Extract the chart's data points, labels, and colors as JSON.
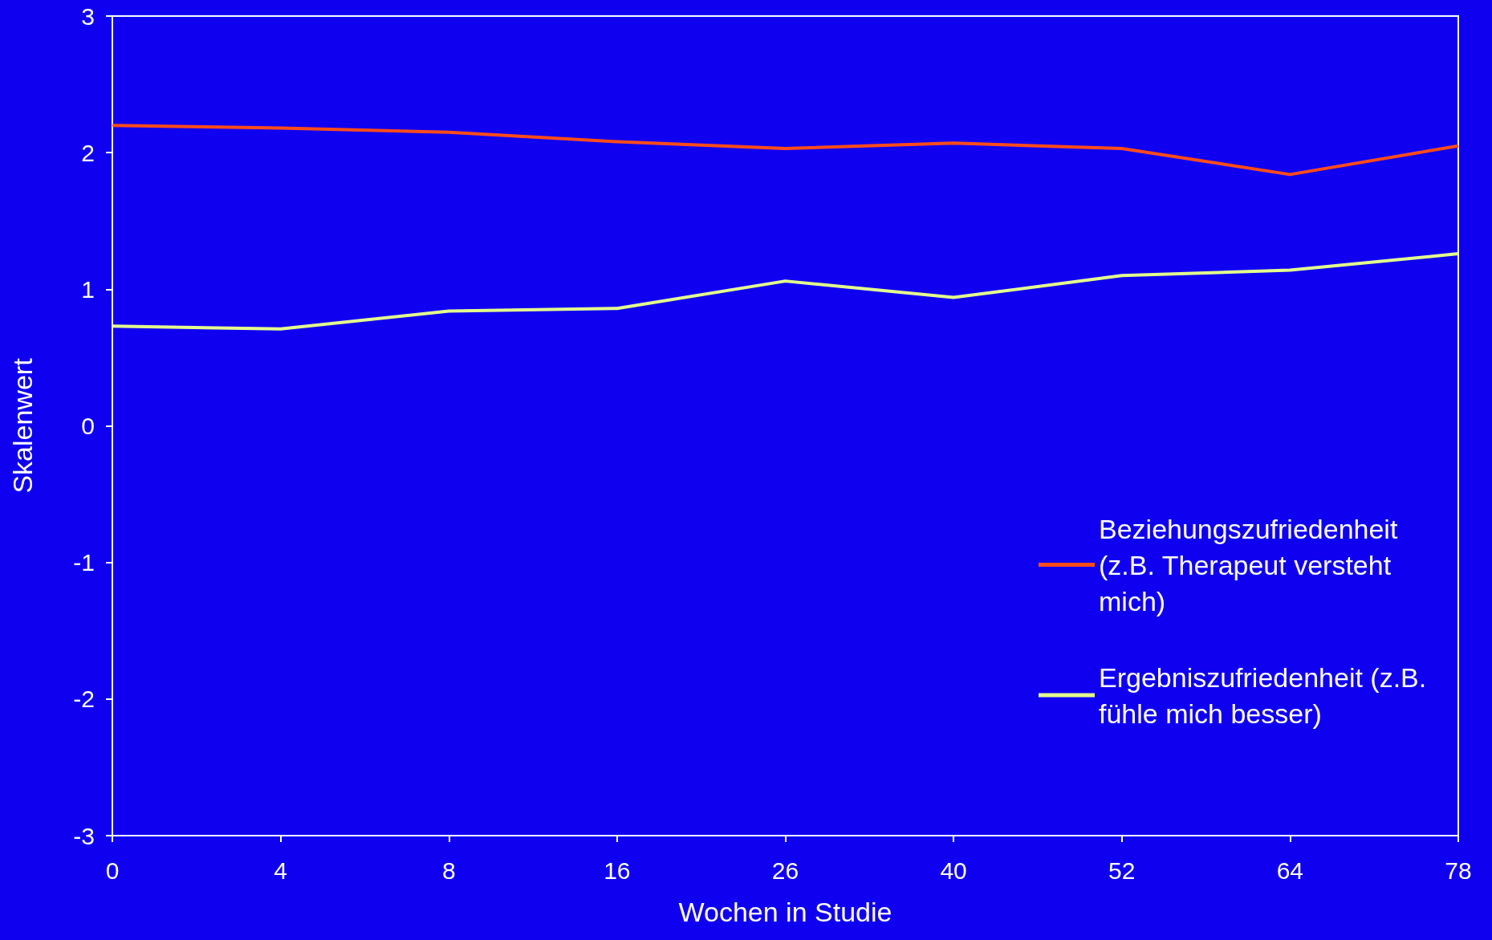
{
  "chart_data": {
    "type": "line",
    "xlabel": "Wochen in Studie",
    "ylabel": "Skalenwert",
    "categories": [
      "0",
      "4",
      "8",
      "16",
      "26",
      "40",
      "52",
      "64",
      "78"
    ],
    "ylim": [
      -3,
      3
    ],
    "yticks": [
      -3,
      -2,
      -1,
      0,
      1,
      2,
      3
    ],
    "grid": false,
    "legend": "bottom right",
    "marker": "none",
    "line_style": "solid",
    "series": [
      {
        "name": "Beziehungszufriedenheit (z.B. Therapeut versteht mich)",
        "color": "#ff4c1a",
        "values": [
          2.2,
          2.18,
          2.15,
          2.08,
          2.03,
          2.07,
          2.03,
          1.84,
          2.05
        ]
      },
      {
        "name": "Ergebniszufriedenheit (z.B. fühle mich besser)",
        "color": "#e4ff8c",
        "values": [
          0.73,
          0.71,
          0.84,
          0.86,
          1.06,
          0.94,
          1.1,
          1.14,
          1.26
        ]
      }
    ]
  }
}
